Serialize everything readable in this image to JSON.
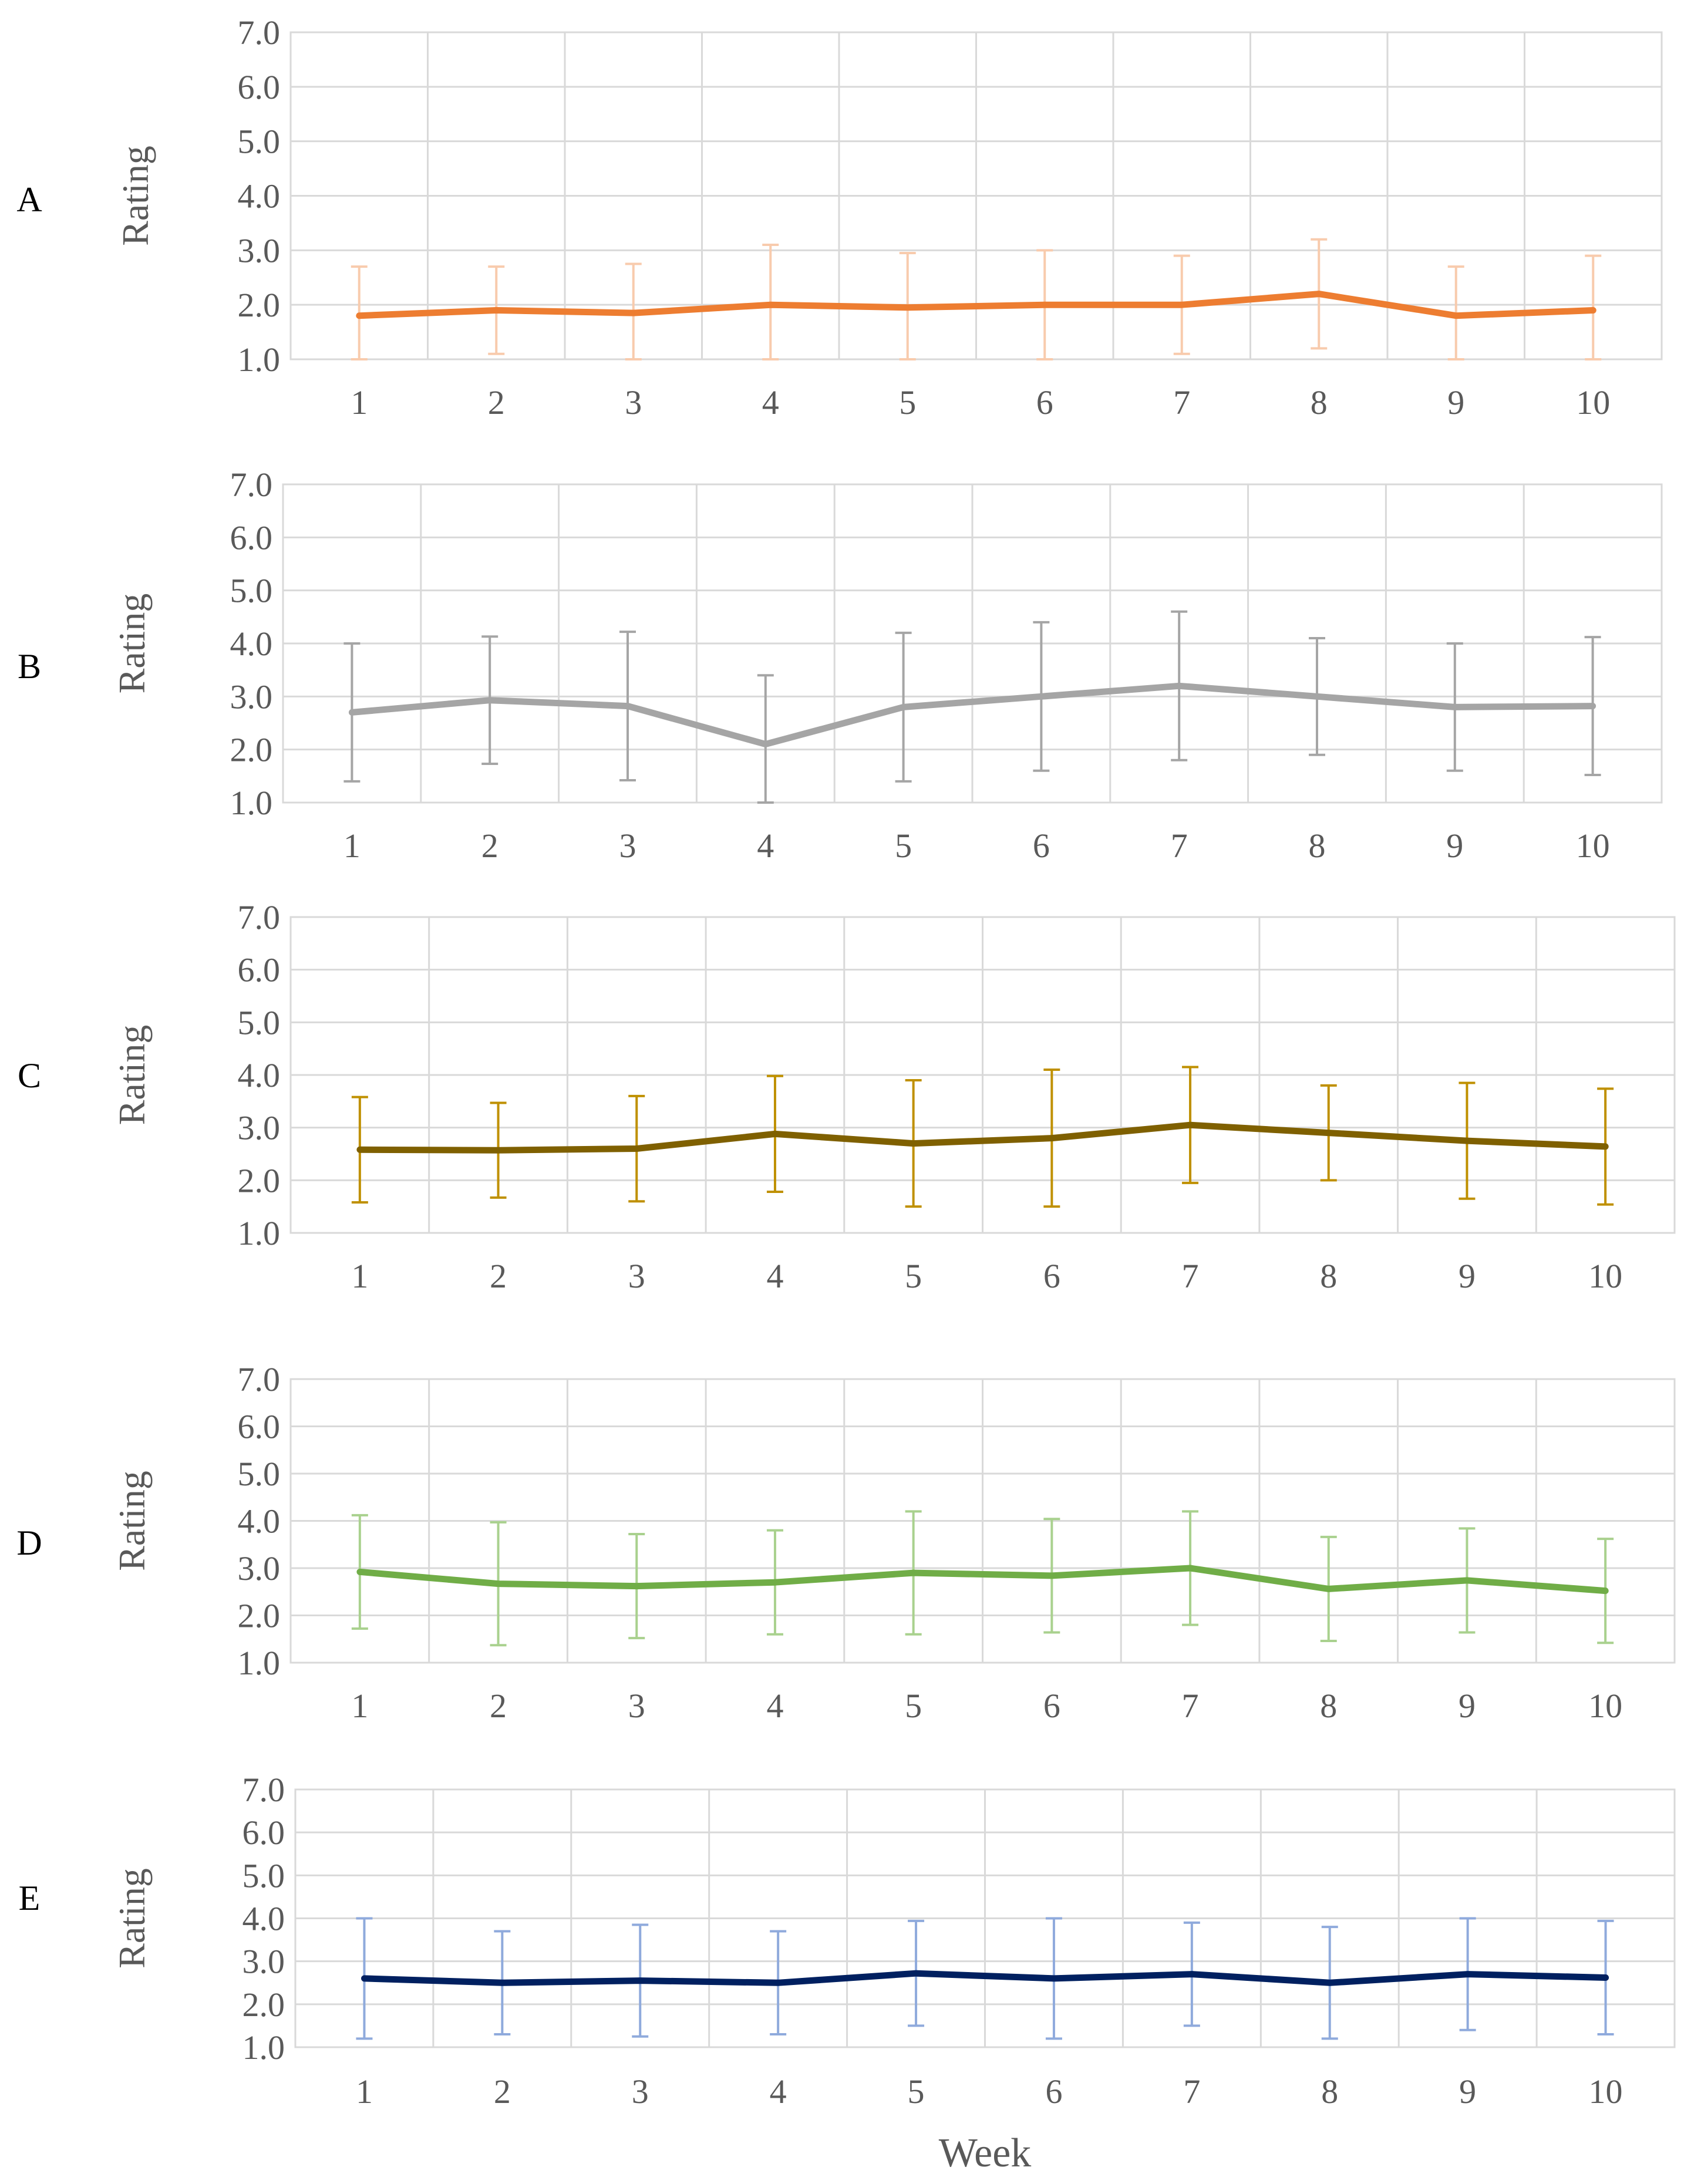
{
  "chart_data": [
    {
      "panel": "A",
      "type": "line",
      "ylabel": "Rating",
      "xlabel": "",
      "ylim": [
        1.0,
        7.0
      ],
      "yticks": [
        "1.0",
        "2.0",
        "3.0",
        "4.0",
        "5.0",
        "6.0",
        "7.0"
      ],
      "categories": [
        "1",
        "2",
        "3",
        "4",
        "5",
        "6",
        "7",
        "8",
        "9",
        "10"
      ],
      "grid": true,
      "line_color": "#ED7D31",
      "error_color": "#F8CBAD",
      "values": [
        1.8,
        1.9,
        1.85,
        2.0,
        1.95,
        2.0,
        2.0,
        2.2,
        1.8,
        1.9
      ],
      "error_low": [
        1.0,
        1.1,
        1.0,
        1.0,
        1.0,
        1.0,
        1.1,
        1.2,
        1.0,
        1.0
      ],
      "error_high": [
        2.7,
        2.7,
        2.75,
        3.1,
        2.95,
        3.0,
        2.9,
        3.2,
        2.7,
        2.9
      ]
    },
    {
      "panel": "B",
      "type": "line",
      "ylabel": "Rating",
      "xlabel": "",
      "ylim": [
        1.0,
        7.0
      ],
      "yticks": [
        "1.0",
        "2.0",
        "3.0",
        "4.0",
        "5.0",
        "6.0",
        "7.0"
      ],
      "categories": [
        "1",
        "2",
        "3",
        "4",
        "5",
        "6",
        "7",
        "8",
        "9",
        "10"
      ],
      "grid": true,
      "line_color": "#A5A5A5",
      "error_color": "#A5A5A5",
      "values": [
        2.7,
        2.93,
        2.82,
        2.1,
        2.8,
        3.0,
        3.2,
        3.0,
        2.8,
        2.82
      ],
      "error_low": [
        1.4,
        1.73,
        1.42,
        1.0,
        1.4,
        1.6,
        1.8,
        1.9,
        1.6,
        1.52
      ],
      "error_high": [
        4.0,
        4.13,
        4.22,
        3.4,
        4.2,
        4.4,
        4.6,
        4.1,
        4.0,
        4.12
      ]
    },
    {
      "panel": "C",
      "type": "line",
      "ylabel": "Rating",
      "xlabel": "",
      "ylim": [
        1.0,
        7.0
      ],
      "yticks": [
        "1.0",
        "2.0",
        "3.0",
        "4.0",
        "5.0",
        "6.0",
        "7.0"
      ],
      "categories": [
        "1",
        "2",
        "3",
        "4",
        "5",
        "6",
        "7",
        "8",
        "9",
        "10"
      ],
      "grid": true,
      "line_color": "#7F6000",
      "error_color": "#BF9000",
      "values": [
        2.58,
        2.57,
        2.6,
        2.88,
        2.7,
        2.8,
        3.05,
        2.9,
        2.75,
        2.64
      ],
      "error_low": [
        1.58,
        1.67,
        1.6,
        1.78,
        1.5,
        1.5,
        1.95,
        2.0,
        1.65,
        1.54
      ],
      "error_high": [
        3.58,
        3.47,
        3.6,
        3.98,
        3.9,
        4.1,
        4.15,
        3.8,
        3.85,
        3.74
      ]
    },
    {
      "panel": "D",
      "type": "line",
      "ylabel": "Rating",
      "xlabel": "",
      "ylim": [
        1.0,
        7.0
      ],
      "yticks": [
        "1.0",
        "2.0",
        "3.0",
        "4.0",
        "5.0",
        "6.0",
        "7.0"
      ],
      "categories": [
        "1",
        "2",
        "3",
        "4",
        "5",
        "6",
        "7",
        "8",
        "9",
        "10"
      ],
      "grid": true,
      "line_color": "#70AD47",
      "error_color": "#A9D18E",
      "values": [
        2.92,
        2.67,
        2.62,
        2.7,
        2.9,
        2.84,
        3.0,
        2.56,
        2.74,
        2.52
      ],
      "error_low": [
        1.72,
        1.37,
        1.52,
        1.6,
        1.6,
        1.64,
        1.8,
        1.46,
        1.64,
        1.42
      ],
      "error_high": [
        4.12,
        3.97,
        3.72,
        3.8,
        4.2,
        4.04,
        4.2,
        3.66,
        3.84,
        3.62
      ]
    },
    {
      "panel": "E",
      "type": "line",
      "ylabel": "Rating",
      "xlabel": "Week",
      "ylim": [
        1.0,
        7.0
      ],
      "yticks": [
        "1.0",
        "2.0",
        "3.0",
        "4.0",
        "5.0",
        "6.0",
        "7.0"
      ],
      "categories": [
        "1",
        "2",
        "3",
        "4",
        "5",
        "6",
        "7",
        "8",
        "9",
        "10"
      ],
      "grid": true,
      "line_color": "#002060",
      "error_color": "#8FAADC",
      "values": [
        2.6,
        2.5,
        2.55,
        2.5,
        2.72,
        2.6,
        2.7,
        2.5,
        2.7,
        2.62
      ],
      "error_low": [
        1.2,
        1.3,
        1.25,
        1.3,
        1.5,
        1.2,
        1.5,
        1.2,
        1.4,
        1.3
      ],
      "error_high": [
        4.0,
        3.7,
        3.85,
        3.7,
        3.94,
        4.0,
        3.9,
        3.8,
        4.0,
        3.94
      ]
    }
  ]
}
